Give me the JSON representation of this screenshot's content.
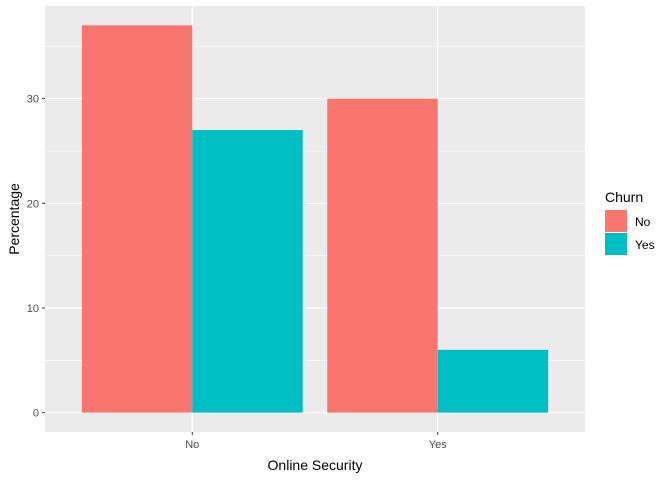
{
  "chart_data": {
    "type": "bar",
    "x_label": "Online Security",
    "y_label": "Percentage",
    "categories": [
      "No",
      "Yes"
    ],
    "series": [
      {
        "name": "No",
        "values": [
          37,
          30
        ],
        "color": "#F8766D"
      },
      {
        "name": "Yes",
        "values": [
          27,
          6
        ],
        "color": "#00BFC4"
      }
    ],
    "y_ticks": [
      "0",
      "10",
      "20",
      "30"
    ],
    "ylim": [
      -1.85,
      38.85
    ],
    "grid": true,
    "panel_background": "#EBEBEB",
    "legend": {
      "title": "Churn",
      "placement": "right"
    }
  }
}
